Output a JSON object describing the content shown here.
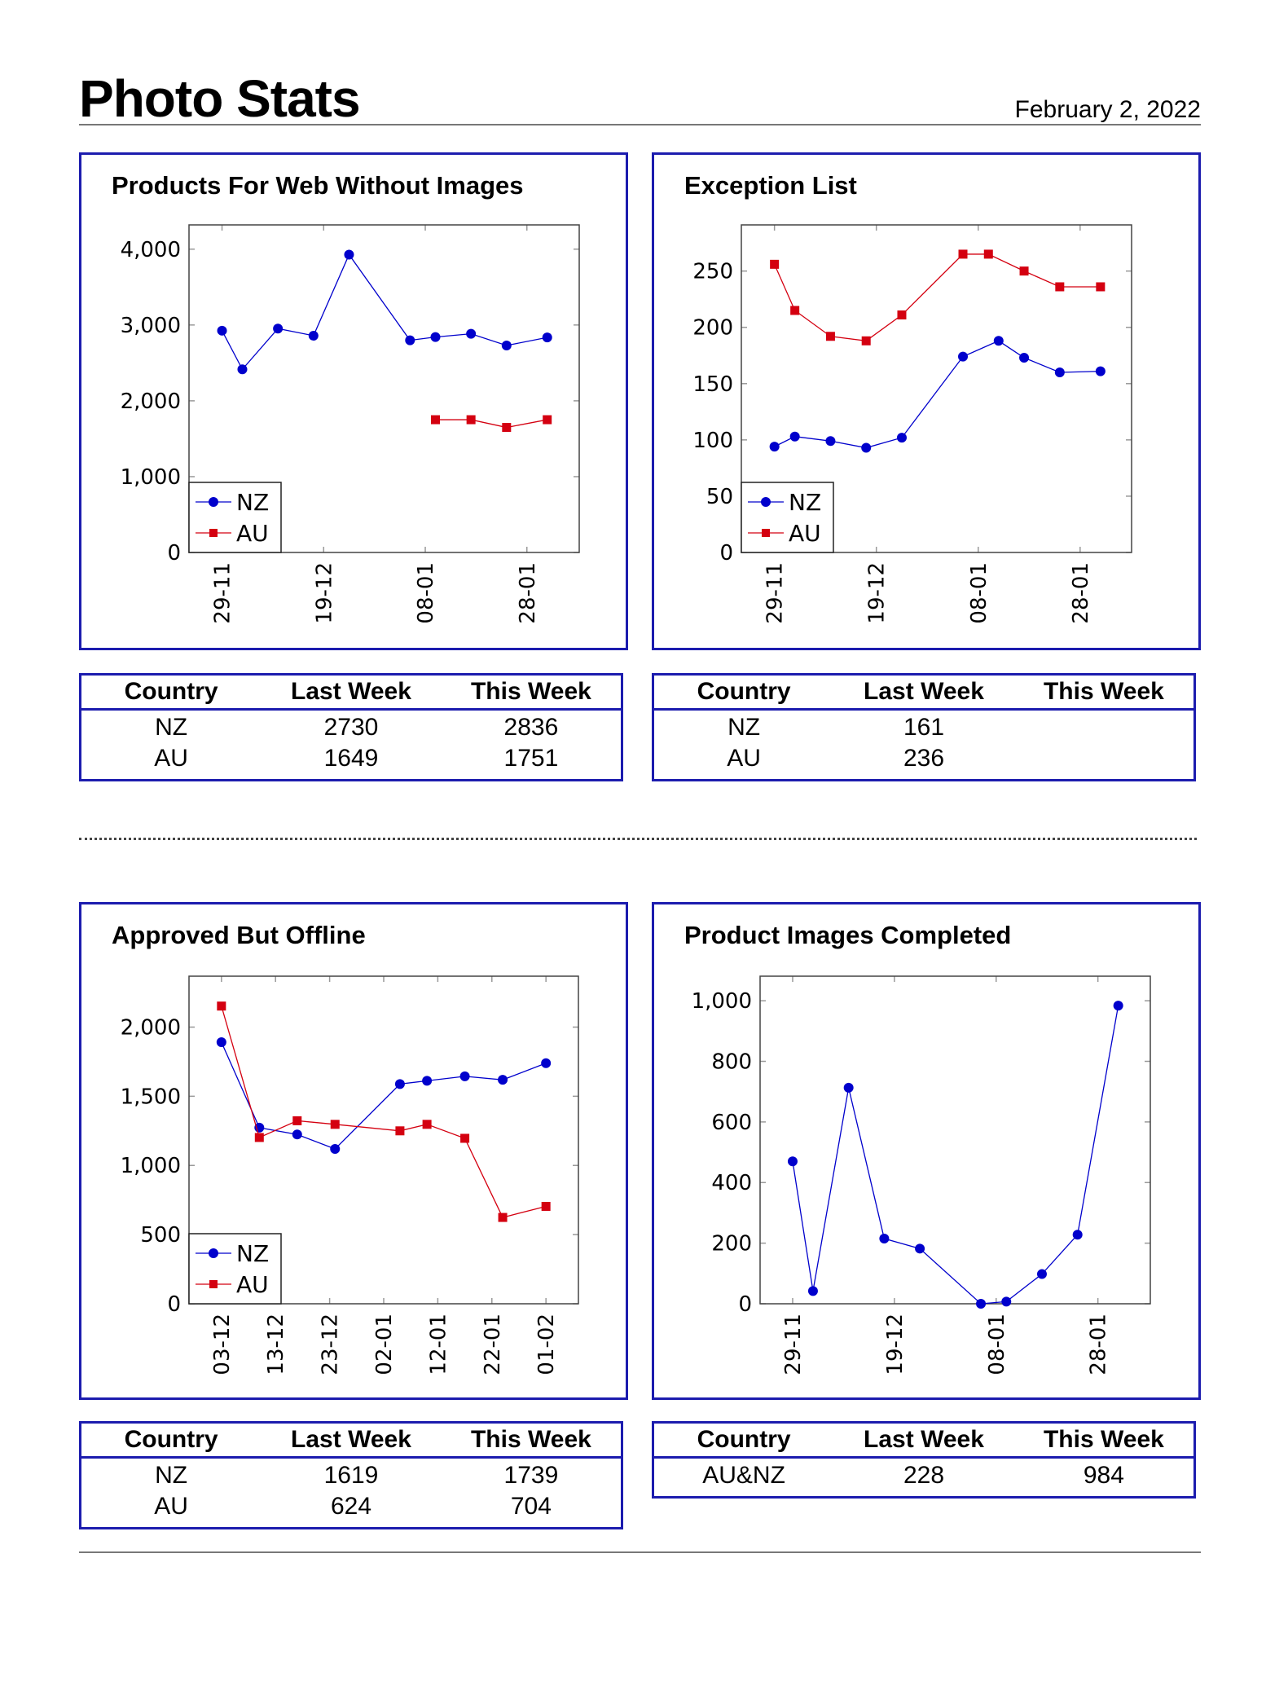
{
  "header": {
    "title": "Photo Stats",
    "date": "February 2, 2022"
  },
  "colors": {
    "nz": "#0000cc",
    "au": "#d40010",
    "panel_border": "#1c1cae"
  },
  "table_headers": [
    "Country",
    "Last Week",
    "This Week"
  ],
  "panels": [
    {
      "title": "Products For Web Without Images",
      "table": [
        [
          "NZ",
          "2730",
          "2836"
        ],
        [
          "AU",
          "1649",
          "1751"
        ]
      ]
    },
    {
      "title": "Exception List",
      "table": [
        [
          "NZ",
          "161",
          ""
        ],
        [
          "AU",
          "236",
          ""
        ]
      ]
    },
    {
      "title": "Approved But Offline",
      "table": [
        [
          "NZ",
          "1619",
          "1739"
        ],
        [
          "AU",
          "624",
          "704"
        ]
      ]
    },
    {
      "title": "Product Images Completed",
      "table": [
        [
          "AU&NZ",
          "228",
          "984"
        ]
      ]
    }
  ],
  "chart_data": [
    {
      "type": "line",
      "title": "Products For Web Without Images",
      "xlabel": "",
      "ylabel": "",
      "xlim": [
        -6.5,
        70.3
      ],
      "ylim": [
        0,
        4320
      ],
      "y_ticks": [
        {
          "value": 0,
          "label": "0"
        },
        {
          "value": 1000,
          "label": "1,000"
        },
        {
          "value": 2000,
          "label": "2,000"
        },
        {
          "value": 3000,
          "label": "3,000"
        },
        {
          "value": 4000,
          "label": "4,000"
        }
      ],
      "x_ticks": [
        {
          "value": 0,
          "label": "29-11"
        },
        {
          "value": 20,
          "label": "19-12"
        },
        {
          "value": 40,
          "label": "08-01"
        },
        {
          "value": 60,
          "label": "28-01"
        }
      ],
      "legend": "bottom-left",
      "series": [
        {
          "name": "NZ",
          "marker": "circle",
          "x": [
            0,
            4,
            11,
            18,
            25,
            37,
            42,
            49,
            56,
            64
          ],
          "values": [
            2925,
            2415,
            2953,
            2859,
            3928,
            2798,
            2841,
            2884,
            2730,
            2836
          ]
        },
        {
          "name": "AU",
          "marker": "square",
          "x": [
            42,
            49,
            56,
            64
          ],
          "values": [
            1751,
            1751,
            1649,
            1751
          ]
        }
      ]
    },
    {
      "type": "line",
      "title": "Exception List",
      "xlabel": "",
      "ylabel": "",
      "xlim": [
        -6.5,
        70.1
      ],
      "ylim": [
        0,
        291
      ],
      "y_ticks": [
        {
          "value": 0,
          "label": "0"
        },
        {
          "value": 50,
          "label": "50"
        },
        {
          "value": 100,
          "label": "100"
        },
        {
          "value": 150,
          "label": "150"
        },
        {
          "value": 200,
          "label": "200"
        },
        {
          "value": 250,
          "label": "250"
        }
      ],
      "x_ticks": [
        {
          "value": 0,
          "label": "29-11"
        },
        {
          "value": 20,
          "label": "19-12"
        },
        {
          "value": 40,
          "label": "08-01"
        },
        {
          "value": 60,
          "label": "28-01"
        }
      ],
      "legend": "bottom-left",
      "series": [
        {
          "name": "NZ",
          "marker": "circle",
          "x": [
            0,
            4,
            11,
            18,
            25,
            37,
            44,
            49,
            56,
            64
          ],
          "values": [
            94,
            103,
            99,
            93,
            102,
            174,
            188,
            173,
            160,
            161
          ]
        },
        {
          "name": "AU",
          "marker": "square",
          "x": [
            0,
            4,
            11,
            18,
            25,
            37,
            42,
            49,
            56,
            64
          ],
          "values": [
            256,
            215,
            192,
            188,
            211,
            265,
            265,
            250,
            236,
            236
          ]
        }
      ]
    },
    {
      "type": "line",
      "title": "Approved But Offline",
      "xlabel": "",
      "ylabel": "",
      "xlim": [
        -6.0,
        66.0
      ],
      "ylim": [
        0,
        2368
      ],
      "y_ticks": [
        {
          "value": 0,
          "label": "0"
        },
        {
          "value": 500,
          "label": "500"
        },
        {
          "value": 1000,
          "label": "1,000"
        },
        {
          "value": 1500,
          "label": "1,500"
        },
        {
          "value": 2000,
          "label": "2,000"
        }
      ],
      "x_ticks": [
        {
          "value": 0,
          "label": "03-12"
        },
        {
          "value": 10,
          "label": "13-12"
        },
        {
          "value": 20,
          "label": "23-12"
        },
        {
          "value": 30,
          "label": "02-01"
        },
        {
          "value": 40,
          "label": "12-01"
        },
        {
          "value": 50,
          "label": "22-01"
        },
        {
          "value": 60,
          "label": "01-02"
        }
      ],
      "legend": "bottom-left",
      "series": [
        {
          "name": "NZ",
          "marker": "circle",
          "x": [
            0,
            7,
            14,
            21,
            33,
            38,
            45,
            52,
            60
          ],
          "values": [
            1891,
            1273,
            1224,
            1119,
            1588,
            1612,
            1644,
            1619,
            1739
          ]
        },
        {
          "name": "AU",
          "marker": "square",
          "x": [
            0,
            7,
            14,
            21,
            33,
            38,
            45,
            52,
            60
          ],
          "values": [
            2152,
            1202,
            1323,
            1297,
            1250,
            1297,
            1196,
            624,
            704
          ]
        }
      ]
    },
    {
      "type": "line",
      "title": "Product Images Completed",
      "xlabel": "",
      "ylabel": "",
      "xlim": [
        -6.4,
        70.3
      ],
      "ylim": [
        0,
        1081
      ],
      "y_ticks": [
        {
          "value": 0,
          "label": "0"
        },
        {
          "value": 200,
          "label": "200"
        },
        {
          "value": 400,
          "label": "400"
        },
        {
          "value": 600,
          "label": "600"
        },
        {
          "value": 800,
          "label": "800"
        },
        {
          "value": 1000,
          "label": "1,000"
        }
      ],
      "x_ticks": [
        {
          "value": 0,
          "label": "29-11"
        },
        {
          "value": 20,
          "label": "19-12"
        },
        {
          "value": 40,
          "label": "08-01"
        },
        {
          "value": 60,
          "label": "28-01"
        }
      ],
      "legend": "none",
      "series": [
        {
          "name": "AU&NZ",
          "marker": "circle",
          "x": [
            0,
            4,
            11,
            18,
            25,
            37,
            42,
            49,
            56,
            64
          ],
          "values": [
            470,
            42,
            713,
            215,
            182,
            0,
            7,
            98,
            228,
            984
          ]
        }
      ]
    }
  ]
}
